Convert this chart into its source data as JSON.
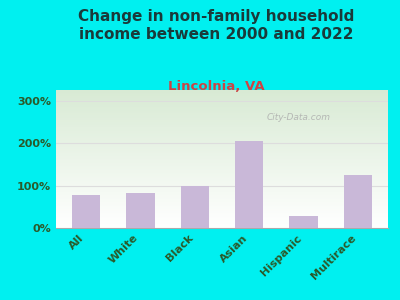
{
  "title": "Change in non-family household\nincome between 2000 and 2022",
  "subtitle": "Lincolnia, VA",
  "categories": [
    "All",
    "White",
    "Black",
    "Asian",
    "Hispanic",
    "Multirace"
  ],
  "values": [
    78,
    82,
    100,
    205,
    28,
    125
  ],
  "bar_color": "#c9b8d8",
  "background_outer": "#00f0f0",
  "background_plot_top": "#d8ead4",
  "background_plot_bottom": "#ffffff",
  "title_color": "#1a3a3a",
  "subtitle_color": "#cc4444",
  "tick_color": "#2a5a2a",
  "ylabel_ticks": [
    0,
    100,
    200,
    300
  ],
  "ylim": [
    0,
    325
  ],
  "watermark": "City-Data.com",
  "title_fontsize": 11,
  "subtitle_fontsize": 9.5
}
